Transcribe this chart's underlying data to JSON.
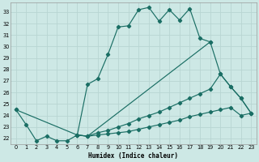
{
  "xlabel": "Humidex (Indice chaleur)",
  "bg_color": "#cde8e5",
  "grid_color": "#b8d5d2",
  "line_color": "#1a6e64",
  "xlim": [
    -0.5,
    23.5
  ],
  "ylim": [
    21.5,
    33.8
  ],
  "xticks": [
    0,
    1,
    2,
    3,
    4,
    5,
    6,
    7,
    8,
    9,
    10,
    11,
    12,
    13,
    14,
    15,
    16,
    17,
    18,
    19,
    20,
    21,
    22,
    23
  ],
  "yticks": [
    22,
    23,
    24,
    25,
    26,
    27,
    28,
    29,
    30,
    31,
    32,
    33
  ],
  "curve1_x": [
    0,
    1,
    2,
    3,
    4,
    5,
    6,
    7,
    8,
    9,
    10,
    11,
    12,
    13,
    14,
    15,
    16,
    17,
    18,
    19
  ],
  "curve1_y": [
    24.5,
    23.2,
    21.8,
    22.2,
    21.8,
    21.8,
    22.3,
    26.7,
    27.2,
    29.3,
    31.7,
    31.8,
    33.2,
    33.4,
    32.2,
    33.2,
    32.3,
    33.3,
    30.7,
    30.4
  ],
  "curve2_x": [
    0,
    6,
    7,
    19,
    20,
    21,
    22,
    23
  ],
  "curve2_y": [
    24.5,
    22.3,
    22.2,
    30.4,
    27.6,
    26.5,
    25.5,
    24.2
  ],
  "curve3_x": [
    6,
    7,
    8,
    9,
    10,
    11,
    12,
    13,
    14,
    15,
    16,
    17,
    18,
    19,
    20,
    21,
    22,
    23
  ],
  "curve3_y": [
    22.3,
    22.2,
    22.3,
    22.4,
    22.5,
    22.6,
    22.8,
    23.0,
    23.2,
    23.4,
    23.6,
    23.9,
    24.1,
    24.3,
    24.5,
    24.7,
    24.0,
    24.2
  ],
  "curve3b_x": [
    6,
    7,
    8,
    9,
    10,
    11,
    12,
    13,
    14,
    15,
    16,
    17,
    18,
    19,
    20,
    21,
    22,
    23
  ],
  "curve3b_y": [
    22.3,
    22.2,
    22.5,
    22.7,
    23.0,
    23.3,
    23.7,
    24.0,
    24.3,
    24.7,
    25.1,
    25.5,
    25.9,
    26.3,
    27.6,
    26.5,
    25.5,
    24.2
  ]
}
